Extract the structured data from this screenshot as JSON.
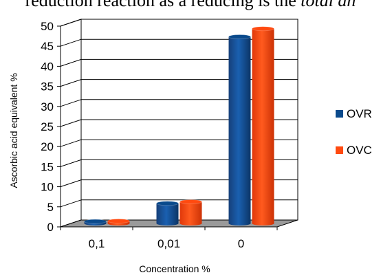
{
  "caption_fragment": {
    "text": "reduction reaction as a reducing is the",
    "italic_text": "total an"
  },
  "chart_data": {
    "type": "bar",
    "categories": [
      "0,1",
      "0,01",
      "0"
    ],
    "series": [
      {
        "name": "OVR",
        "values": [
          0.5,
          5,
          46.5
        ],
        "color": "#0a4a8c"
      },
      {
        "name": "OVC",
        "values": [
          0.6,
          5.4,
          48.5
        ],
        "color": "#ff4a10"
      }
    ],
    "title": "",
    "xlabel": "Concentration %",
    "ylabel": "Ascorbic acid equivalent %",
    "ylim": [
      0,
      50
    ],
    "yticks": [
      "0",
      "5",
      "10",
      "15",
      "20",
      "25",
      "30",
      "35",
      "40",
      "45",
      "50"
    ],
    "grid": true,
    "legend": "right"
  }
}
